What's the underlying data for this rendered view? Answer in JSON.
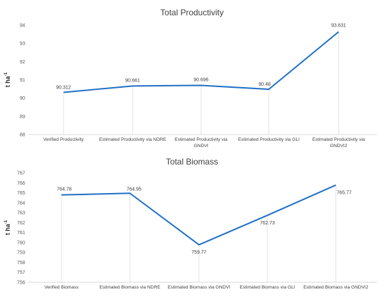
{
  "chart_data": [
    {
      "type": "line",
      "title": "Total Productivity",
      "ylabel_base": "t ha",
      "ylabel_sup": "-1",
      "ylim": [
        88,
        94
      ],
      "yticks": [
        "88",
        "89",
        "90",
        "91",
        "92",
        "93",
        "94"
      ],
      "categories": [
        [
          "Verified Productivity"
        ],
        [
          "Estimated Productivity via NDRE"
        ],
        [
          "Estimated Productivity via",
          "GNDVI"
        ],
        [
          "Estimated Productivity via GLI"
        ],
        [
          "Estimated Productivity via",
          "GNDVI2"
        ]
      ],
      "values": [
        90.312,
        90.661,
        90.696,
        90.48,
        93.631
      ],
      "data_labels": [
        "90.312",
        "90.661",
        "90.696",
        "90.48",
        "93.631"
      ],
      "color": "#1f6fc5"
    },
    {
      "type": "line",
      "title": "Total Biomass",
      "ylabel_base": "t ha",
      "ylabel_sup": "-1",
      "ylim": [
        756,
        767
      ],
      "yticks": [
        "756",
        "757",
        "758",
        "759",
        "760",
        "761",
        "762",
        "763",
        "764",
        "765",
        "766",
        "767"
      ],
      "categories": [
        [
          "Verified Biomass"
        ],
        [
          "Estimated Biomass via NDRE"
        ],
        [
          "Estimated Biomass via GNDVI"
        ],
        [
          "Estimated Biomass via GLI"
        ],
        [
          "Estimated Biomass via GNDVI2"
        ]
      ],
      "values": [
        764.78,
        764.95,
        759.77,
        762.73,
        765.77
      ],
      "data_labels": [
        "764.78",
        "764.95",
        "759.77",
        "762.73",
        "765.77"
      ],
      "color": "#1f6fc5"
    }
  ]
}
